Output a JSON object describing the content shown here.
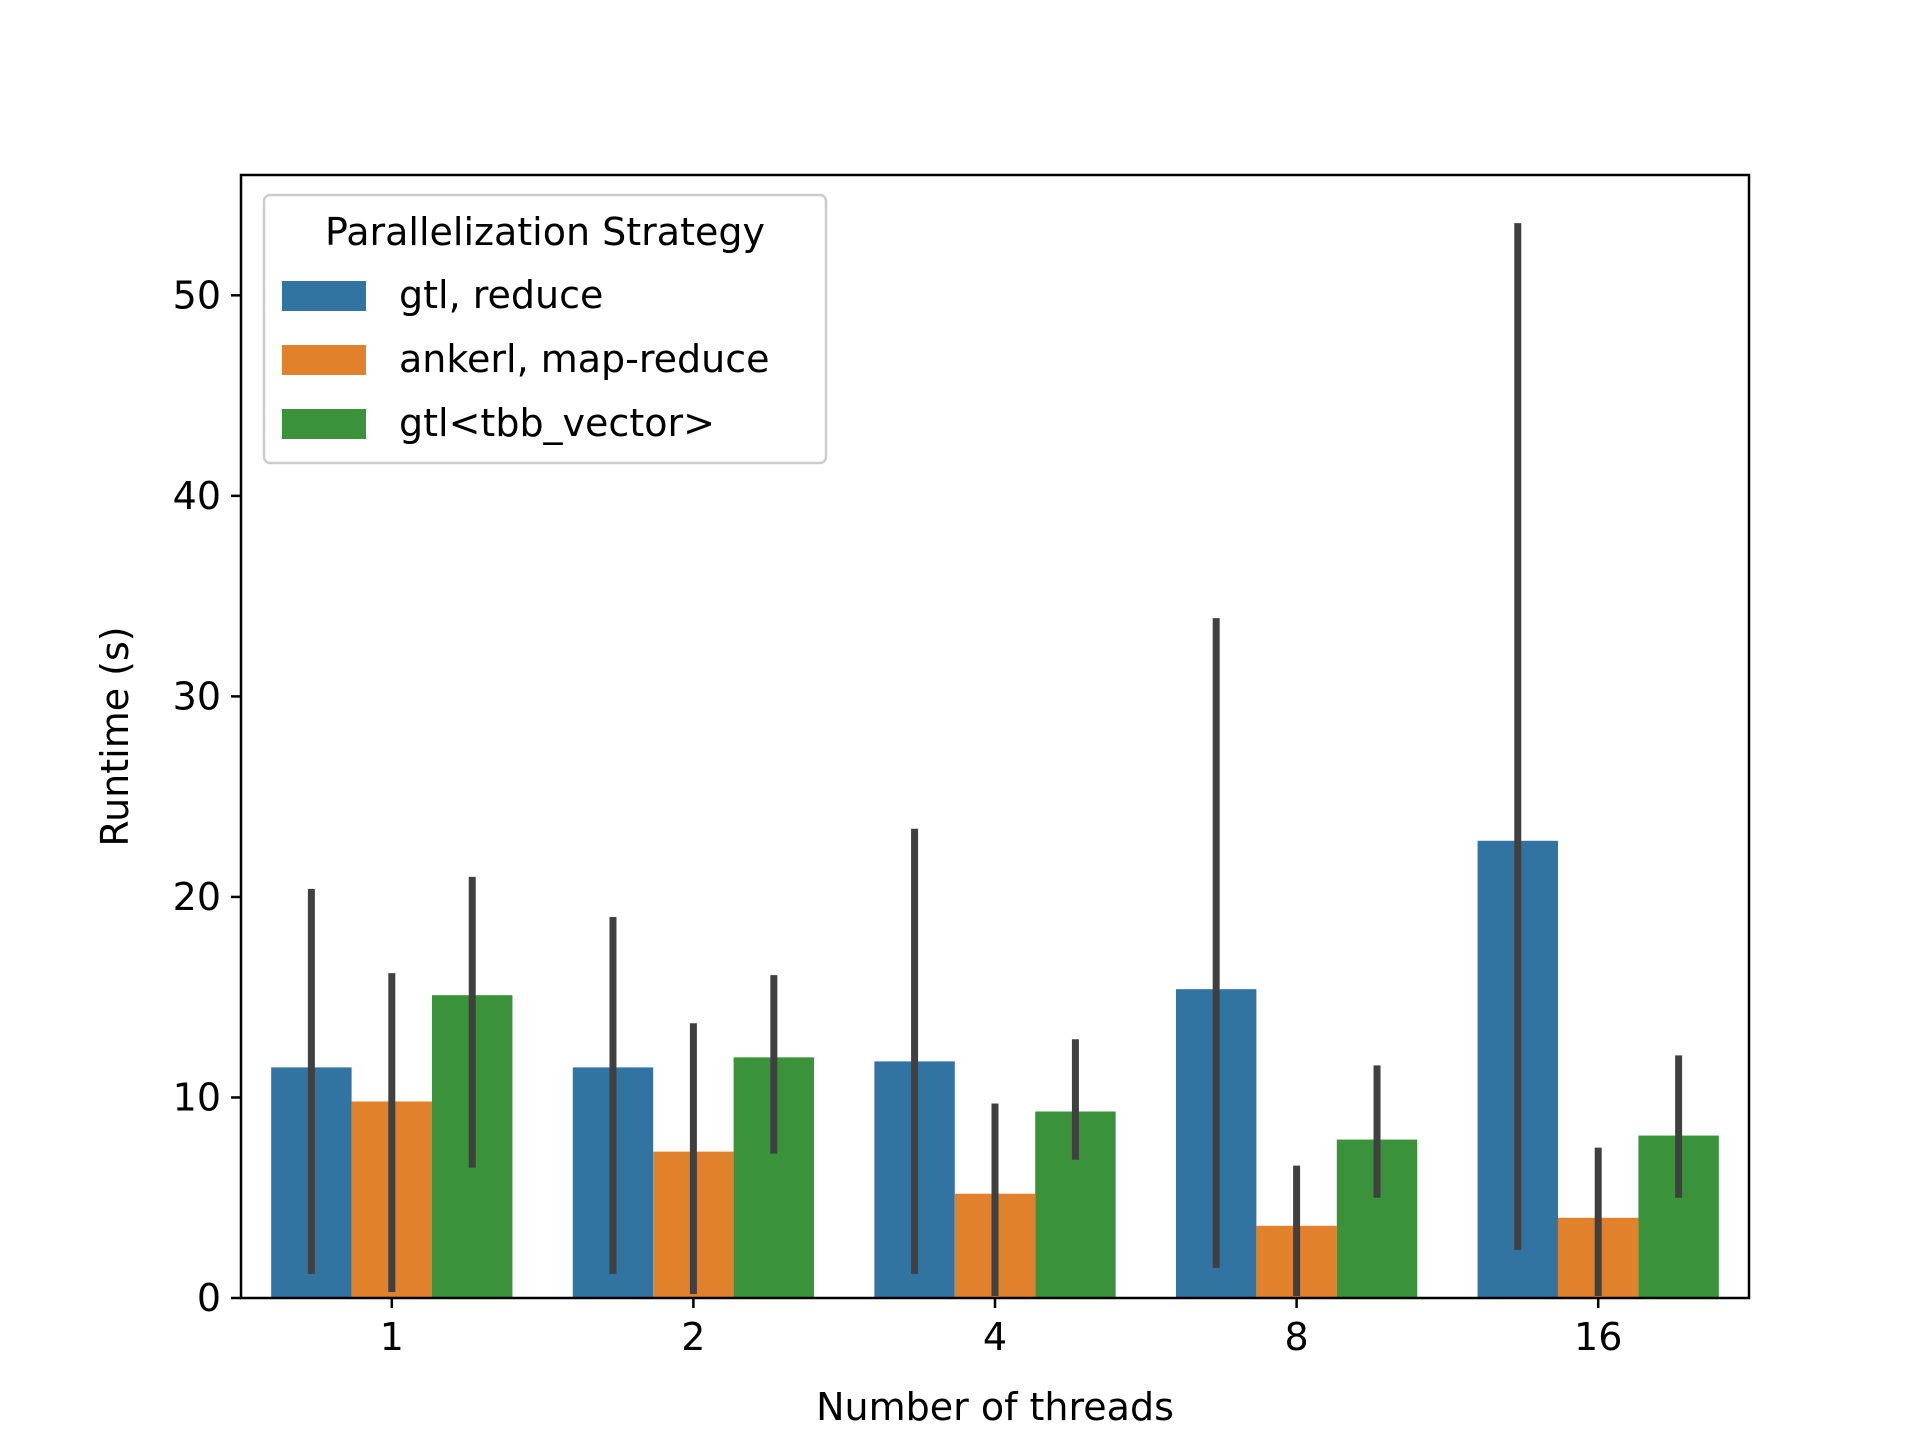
{
  "chart_data": {
    "type": "bar",
    "title": "",
    "xlabel": "Number of threads",
    "ylabel": "Runtime (s)",
    "categories": [
      "1",
      "2",
      "4",
      "8",
      "16"
    ],
    "ylim": [
      0,
      56
    ],
    "yticks": [
      0,
      10,
      20,
      30,
      40,
      50
    ],
    "grid": false,
    "legend": {
      "title": "Parallelization Strategy",
      "placement": "top-left"
    },
    "series": [
      {
        "name": "gtl, reduce",
        "color": "#3274a1",
        "values": [
          11.5,
          11.5,
          11.8,
          15.4,
          22.8
        ],
        "err_low": [
          1.2,
          1.2,
          1.2,
          1.5,
          2.4
        ],
        "err_high": [
          20.4,
          19.0,
          23.4,
          33.9,
          53.6
        ]
      },
      {
        "name": "ankerl, map-reduce",
        "color": "#e1812c",
        "values": [
          9.8,
          7.3,
          5.2,
          3.6,
          4.0
        ],
        "err_low": [
          0.3,
          0.2,
          0.1,
          0.1,
          0.1
        ],
        "err_high": [
          16.2,
          13.7,
          9.7,
          6.6,
          7.5
        ]
      },
      {
        "name": "gtl<tbb_vector>",
        "color": "#3a923a",
        "values": [
          15.1,
          12.0,
          9.3,
          7.9,
          8.1
        ],
        "err_low": [
          6.5,
          7.2,
          6.9,
          5.0,
          5.0
        ],
        "err_high": [
          21.0,
          16.1,
          12.9,
          11.6,
          12.1
        ]
      }
    ],
    "errorbar_color": "#404040"
  }
}
